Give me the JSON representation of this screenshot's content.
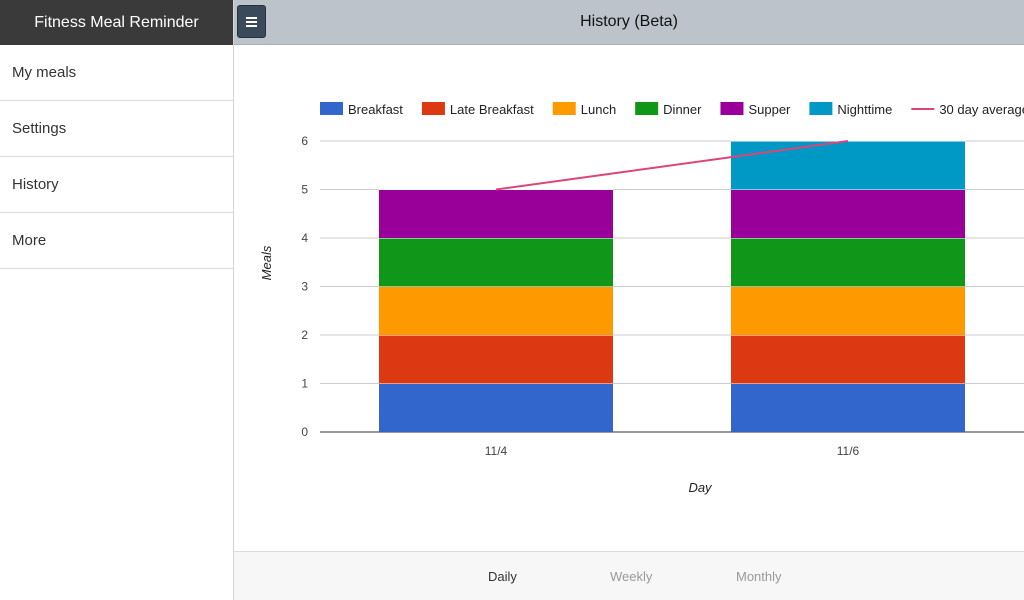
{
  "sidebar": {
    "title": "Fitness Meal Reminder",
    "items": [
      {
        "label": "My meals"
      },
      {
        "label": "Settings"
      },
      {
        "label": "History"
      },
      {
        "label": "More"
      }
    ]
  },
  "header": {
    "title": "History (Beta)",
    "menu_icon": "hamburger-menu-icon"
  },
  "tabs": [
    {
      "label": "Daily",
      "active": true
    },
    {
      "label": "Weekly",
      "active": false
    },
    {
      "label": "Monthly",
      "active": false
    }
  ],
  "chart_data": {
    "type": "bar",
    "stacked": true,
    "categories": [
      "11/4",
      "11/6"
    ],
    "series": [
      {
        "name": "Breakfast",
        "color": "#3366cc",
        "values": [
          1,
          1
        ]
      },
      {
        "name": "Late Breakfast",
        "color": "#dc3912",
        "values": [
          1,
          1
        ]
      },
      {
        "name": "Lunch",
        "color": "#ff9900",
        "values": [
          1,
          1
        ]
      },
      {
        "name": "Dinner",
        "color": "#109618",
        "values": [
          1,
          1
        ]
      },
      {
        "name": "Supper",
        "color": "#990099",
        "values": [
          1,
          1
        ]
      },
      {
        "name": "Nighttime",
        "color": "#0099c6",
        "values": [
          0,
          1
        ]
      }
    ],
    "line_series": {
      "name": "30 day average",
      "color": "#dd4477",
      "values": [
        5,
        6
      ]
    },
    "xlabel": "Day",
    "ylabel": "Meals",
    "ylim": [
      0,
      6
    ],
    "yticks": [
      0,
      1,
      2,
      3,
      4,
      5,
      6
    ],
    "legend": "top"
  }
}
